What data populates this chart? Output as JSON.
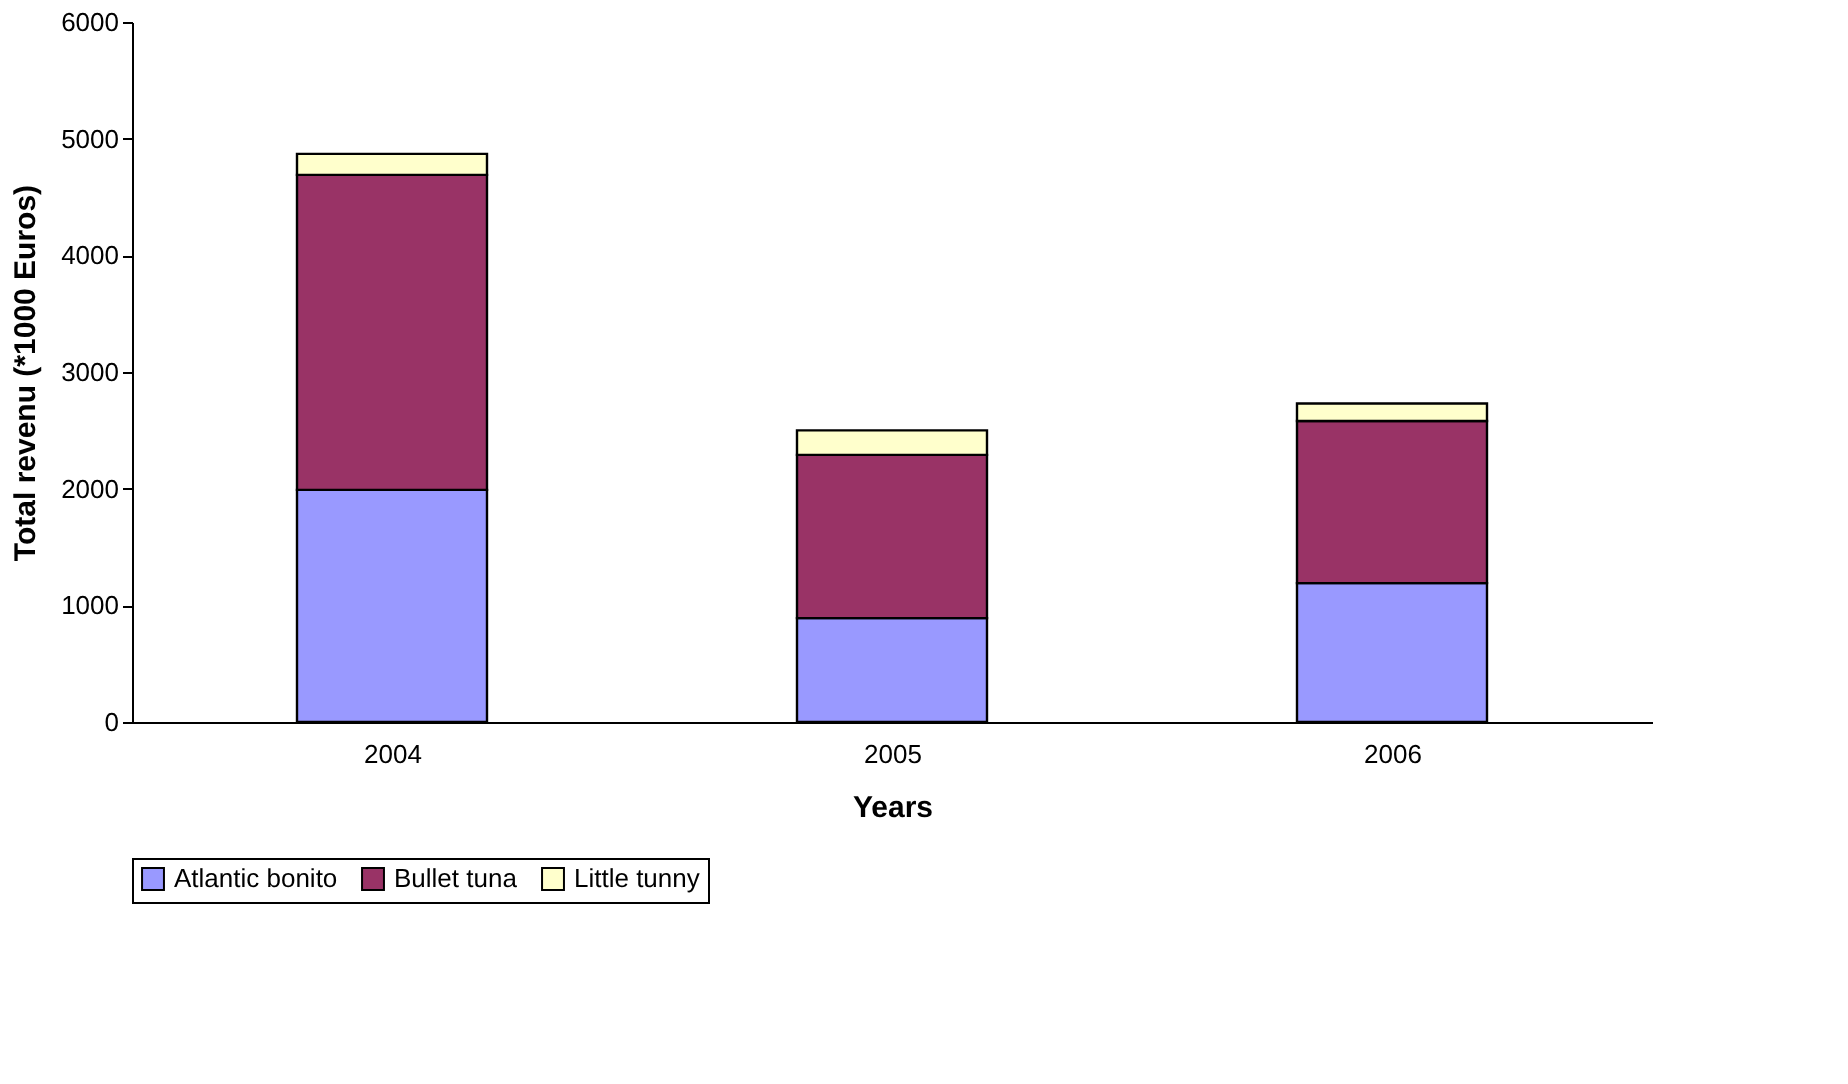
{
  "chart_data": {
    "type": "bar",
    "stacked": true,
    "xlabel": "Years",
    "ylabel": "Total revenu (*1000 Euros)",
    "categories": [
      "2004",
      "2005",
      "2006"
    ],
    "series": [
      {
        "name": "Atlantic bonito",
        "color": "#9999ff",
        "values": [
          1990,
          890,
          1190
        ]
      },
      {
        "name": "Bullet tuna",
        "color": "#993366",
        "values": [
          2700,
          1400,
          1390
        ]
      },
      {
        "name": "Little tunny",
        "color": "#ffffcc",
        "values": [
          180,
          210,
          150
        ]
      }
    ],
    "ylim": [
      0,
      6000
    ],
    "yticks": [
      0,
      1000,
      2000,
      3000,
      4000,
      5000,
      6000
    ],
    "grid": false,
    "legend": "bottom"
  }
}
